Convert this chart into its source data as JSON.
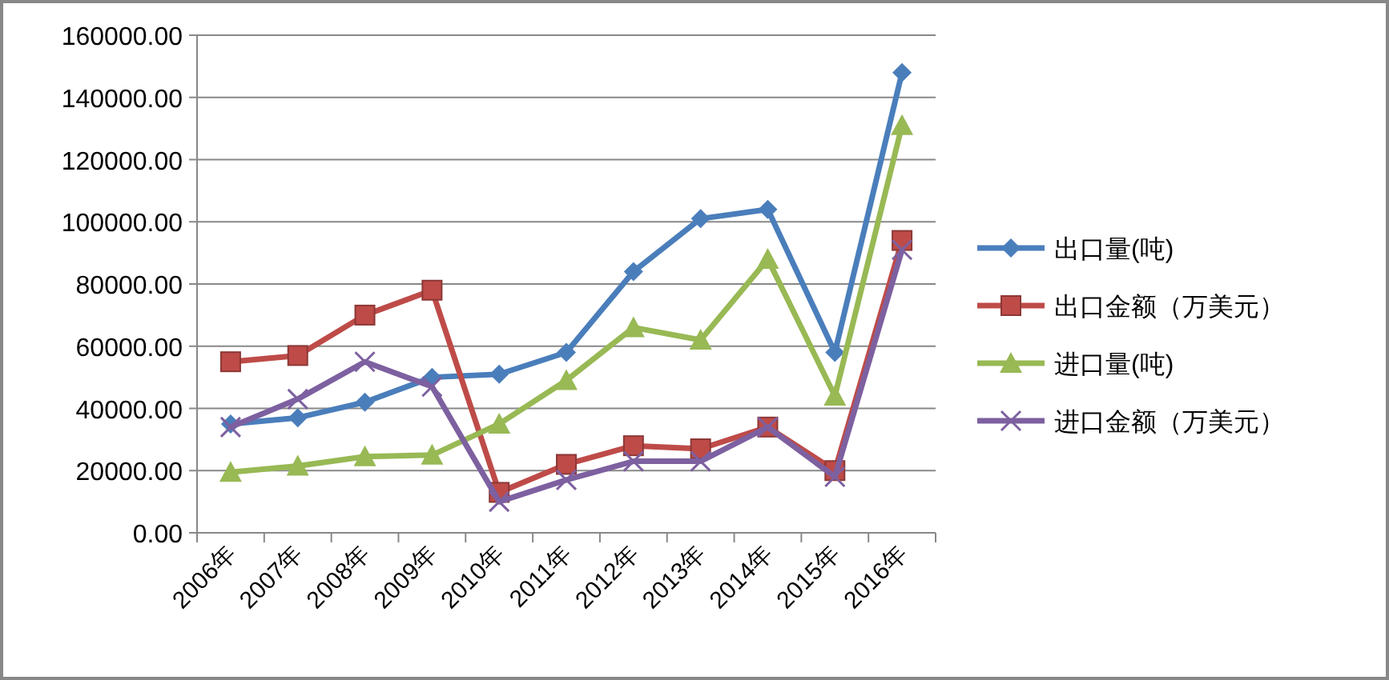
{
  "chart_data": {
    "type": "line",
    "categories": [
      "2006年",
      "2007年",
      "2008年",
      "2009年",
      "2010年",
      "2011年",
      "2012年",
      "2013年",
      "2014年",
      "2015年",
      "2016年"
    ],
    "series": [
      {
        "name": "出口量(吨)",
        "color": "#4a7ebb",
        "marker": "diamond",
        "values": [
          35000,
          37000,
          42000,
          50000,
          51000,
          58000,
          84000,
          101000,
          104000,
          58000,
          148000
        ]
      },
      {
        "name": "出口金额（万美元）",
        "color": "#be4b48",
        "marker": "square",
        "values": [
          55000,
          57000,
          70000,
          78000,
          13000,
          22000,
          28000,
          27000,
          34000,
          20000,
          94000
        ]
      },
      {
        "name": "进口量(吨)",
        "color": "#98b954",
        "marker": "triangle",
        "values": [
          19500,
          21500,
          24500,
          25000,
          35000,
          49000,
          66000,
          62000,
          88000,
          44000,
          131000
        ]
      },
      {
        "name": "进口金额（万美元）",
        "color": "#7d60a0",
        "marker": "cross",
        "values": [
          34000,
          43000,
          55000,
          47000,
          10000,
          17000,
          23000,
          23000,
          34000,
          18000,
          91000
        ]
      }
    ],
    "ylim": [
      0,
      160000
    ],
    "yticks": [
      {
        "value": 0,
        "label": "0.00"
      },
      {
        "value": 20000,
        "label": "20000.00"
      },
      {
        "value": 40000,
        "label": "40000.00"
      },
      {
        "value": 60000,
        "label": "60000.00"
      },
      {
        "value": 80000,
        "label": "80000.00"
      },
      {
        "value": 100000,
        "label": "100000.00"
      },
      {
        "value": 120000,
        "label": "120000.00"
      },
      {
        "value": 140000,
        "label": "140000.00"
      },
      {
        "value": 160000,
        "label": "160000.00"
      }
    ],
    "grid": "y",
    "legend": "right"
  }
}
